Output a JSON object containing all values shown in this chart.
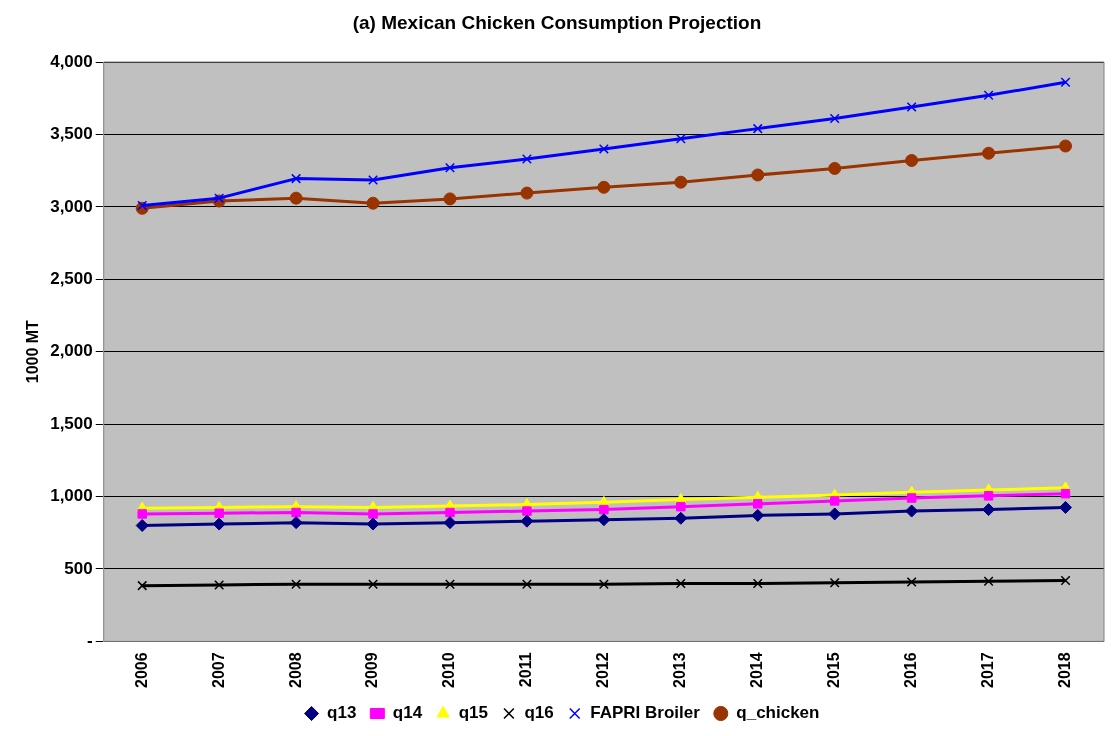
{
  "chart_data": {
    "type": "line",
    "title": "(a) Mexican Chicken Consumption Projection",
    "ylabel": "1000 MT",
    "categories": [
      "2006",
      "2007",
      "2008",
      "2009",
      "2010",
      "2011",
      "2012",
      "2013",
      "2014",
      "2015",
      "2016",
      "2017",
      "2018"
    ],
    "series": [
      {
        "name": "q13",
        "color": "#000080",
        "marker": "diamond",
        "values": [
          800,
          810,
          820,
          810,
          820,
          830,
          840,
          850,
          870,
          880,
          900,
          910,
          925
        ]
      },
      {
        "name": "q14",
        "color": "#ff00ff",
        "marker": "square",
        "values": [
          880,
          885,
          890,
          880,
          890,
          900,
          910,
          930,
          950,
          970,
          990,
          1005,
          1020
        ]
      },
      {
        "name": "q15",
        "color": "#ffff00",
        "marker": "triangle",
        "values": [
          920,
          925,
          930,
          925,
          935,
          945,
          960,
          980,
          995,
          1010,
          1030,
          1045,
          1060
        ]
      },
      {
        "name": "q16",
        "color": "#000000",
        "marker": "cross",
        "values": [
          385,
          390,
          395,
          395,
          395,
          395,
          395,
          400,
          400,
          405,
          410,
          415,
          420
        ]
      },
      {
        "name": "FAPRI Broiler",
        "color": "#0000ff",
        "marker": "cross",
        "values": [
          3010,
          3060,
          3195,
          3185,
          3270,
          3330,
          3400,
          3470,
          3540,
          3610,
          3690,
          3770,
          3860
        ]
      },
      {
        "name": "q_chicken",
        "color": "#993300",
        "marker": "circle",
        "values": [
          2990,
          3040,
          3060,
          3025,
          3055,
          3095,
          3135,
          3170,
          3220,
          3265,
          3320,
          3370,
          3420
        ]
      }
    ],
    "ylim": [
      0,
      4000
    ],
    "yticks": [
      {
        "value": 0,
        "label": "-"
      },
      {
        "value": 500,
        "label": "500"
      },
      {
        "value": 1000,
        "label": "1,000"
      },
      {
        "value": 1500,
        "label": "1,500"
      },
      {
        "value": 2000,
        "label": "2,000"
      },
      {
        "value": 2500,
        "label": "2,500"
      },
      {
        "value": 3000,
        "label": "3,000"
      },
      {
        "value": 3500,
        "label": "3,500"
      },
      {
        "value": 4000,
        "label": "4,000"
      }
    ],
    "grid": "y",
    "legend": "bottom",
    "line_style": "solid"
  }
}
